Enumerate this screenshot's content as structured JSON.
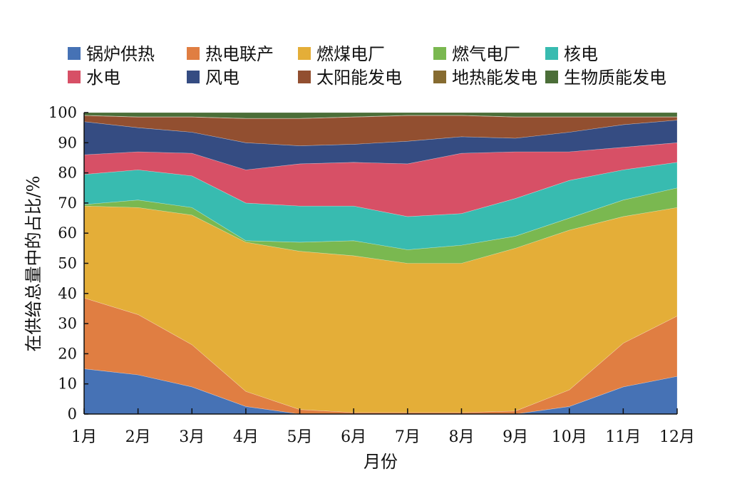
{
  "chart_data": {
    "type": "area",
    "stacked": true,
    "title": "",
    "xlabel": "月份",
    "ylabel": "在供给总量中的占比/%",
    "ylim": [
      0,
      100
    ],
    "yticks": [
      "0",
      "10",
      "20",
      "30",
      "40",
      "50",
      "60",
      "70",
      "80",
      "90",
      "100"
    ],
    "categories": [
      "1月",
      "2月",
      "3月",
      "4月",
      "5月",
      "6月",
      "7月",
      "8月",
      "9月",
      "10月",
      "11月",
      "12月"
    ],
    "legend_position": "top",
    "series": [
      {
        "name": "锅炉供热",
        "color": "#4672b5",
        "values": [
          15,
          13,
          9,
          2.5,
          0,
          0,
          0,
          0,
          0,
          2.5,
          9,
          12.5
        ]
      },
      {
        "name": "热电联产",
        "color": "#e07e42",
        "values": [
          23.5,
          20,
          14,
          5,
          1.5,
          0.5,
          0.5,
          0.5,
          1,
          5.5,
          14.5,
          20
        ]
      },
      {
        "name": "燃煤电厂",
        "color": "#e4ae38",
        "values": [
          30.5,
          35.5,
          43,
          49.5,
          52.5,
          52,
          49.5,
          49.5,
          54,
          53,
          42,
          36
        ]
      },
      {
        "name": "燃气电厂",
        "color": "#7ab850",
        "values": [
          0.5,
          2.5,
          2.5,
          0.5,
          3,
          5,
          4.5,
          6,
          4,
          4,
          5.5,
          6.5
        ]
      },
      {
        "name": "核电",
        "color": "#38bbb0",
        "values": [
          10,
          10,
          10.5,
          12.5,
          12,
          11.5,
          11,
          10.5,
          12.5,
          12.5,
          10,
          8.5
        ]
      },
      {
        "name": "水电",
        "color": "#d75066",
        "values": [
          6.5,
          6,
          7.5,
          11,
          14,
          14.5,
          17.5,
          20,
          15.5,
          9.5,
          7.5,
          6.5
        ]
      },
      {
        "name": "风电",
        "color": "#354c82",
        "values": [
          11,
          8,
          7,
          9,
          6,
          6,
          7.5,
          5.5,
          4.5,
          6.5,
          7.5,
          7.5
        ]
      },
      {
        "name": "太阳能发电",
        "color": "#924f30",
        "values": [
          2,
          3.5,
          5,
          8,
          9,
          9,
          8.5,
          7,
          7,
          5,
          2.5,
          1
        ]
      },
      {
        "name": "地热能发电",
        "color": "#866b30",
        "values": [
          0.1,
          0.1,
          0.1,
          0.1,
          0.1,
          0.1,
          0.1,
          0.1,
          0.1,
          0.1,
          0.1,
          0.1
        ]
      },
      {
        "name": "生物质能发电",
        "color": "#4b6e38",
        "values": [
          0.9,
          1.4,
          1.4,
          1.9,
          1.9,
          1.4,
          0.9,
          0.9,
          1.4,
          1.4,
          1.4,
          1.4
        ]
      }
    ]
  }
}
